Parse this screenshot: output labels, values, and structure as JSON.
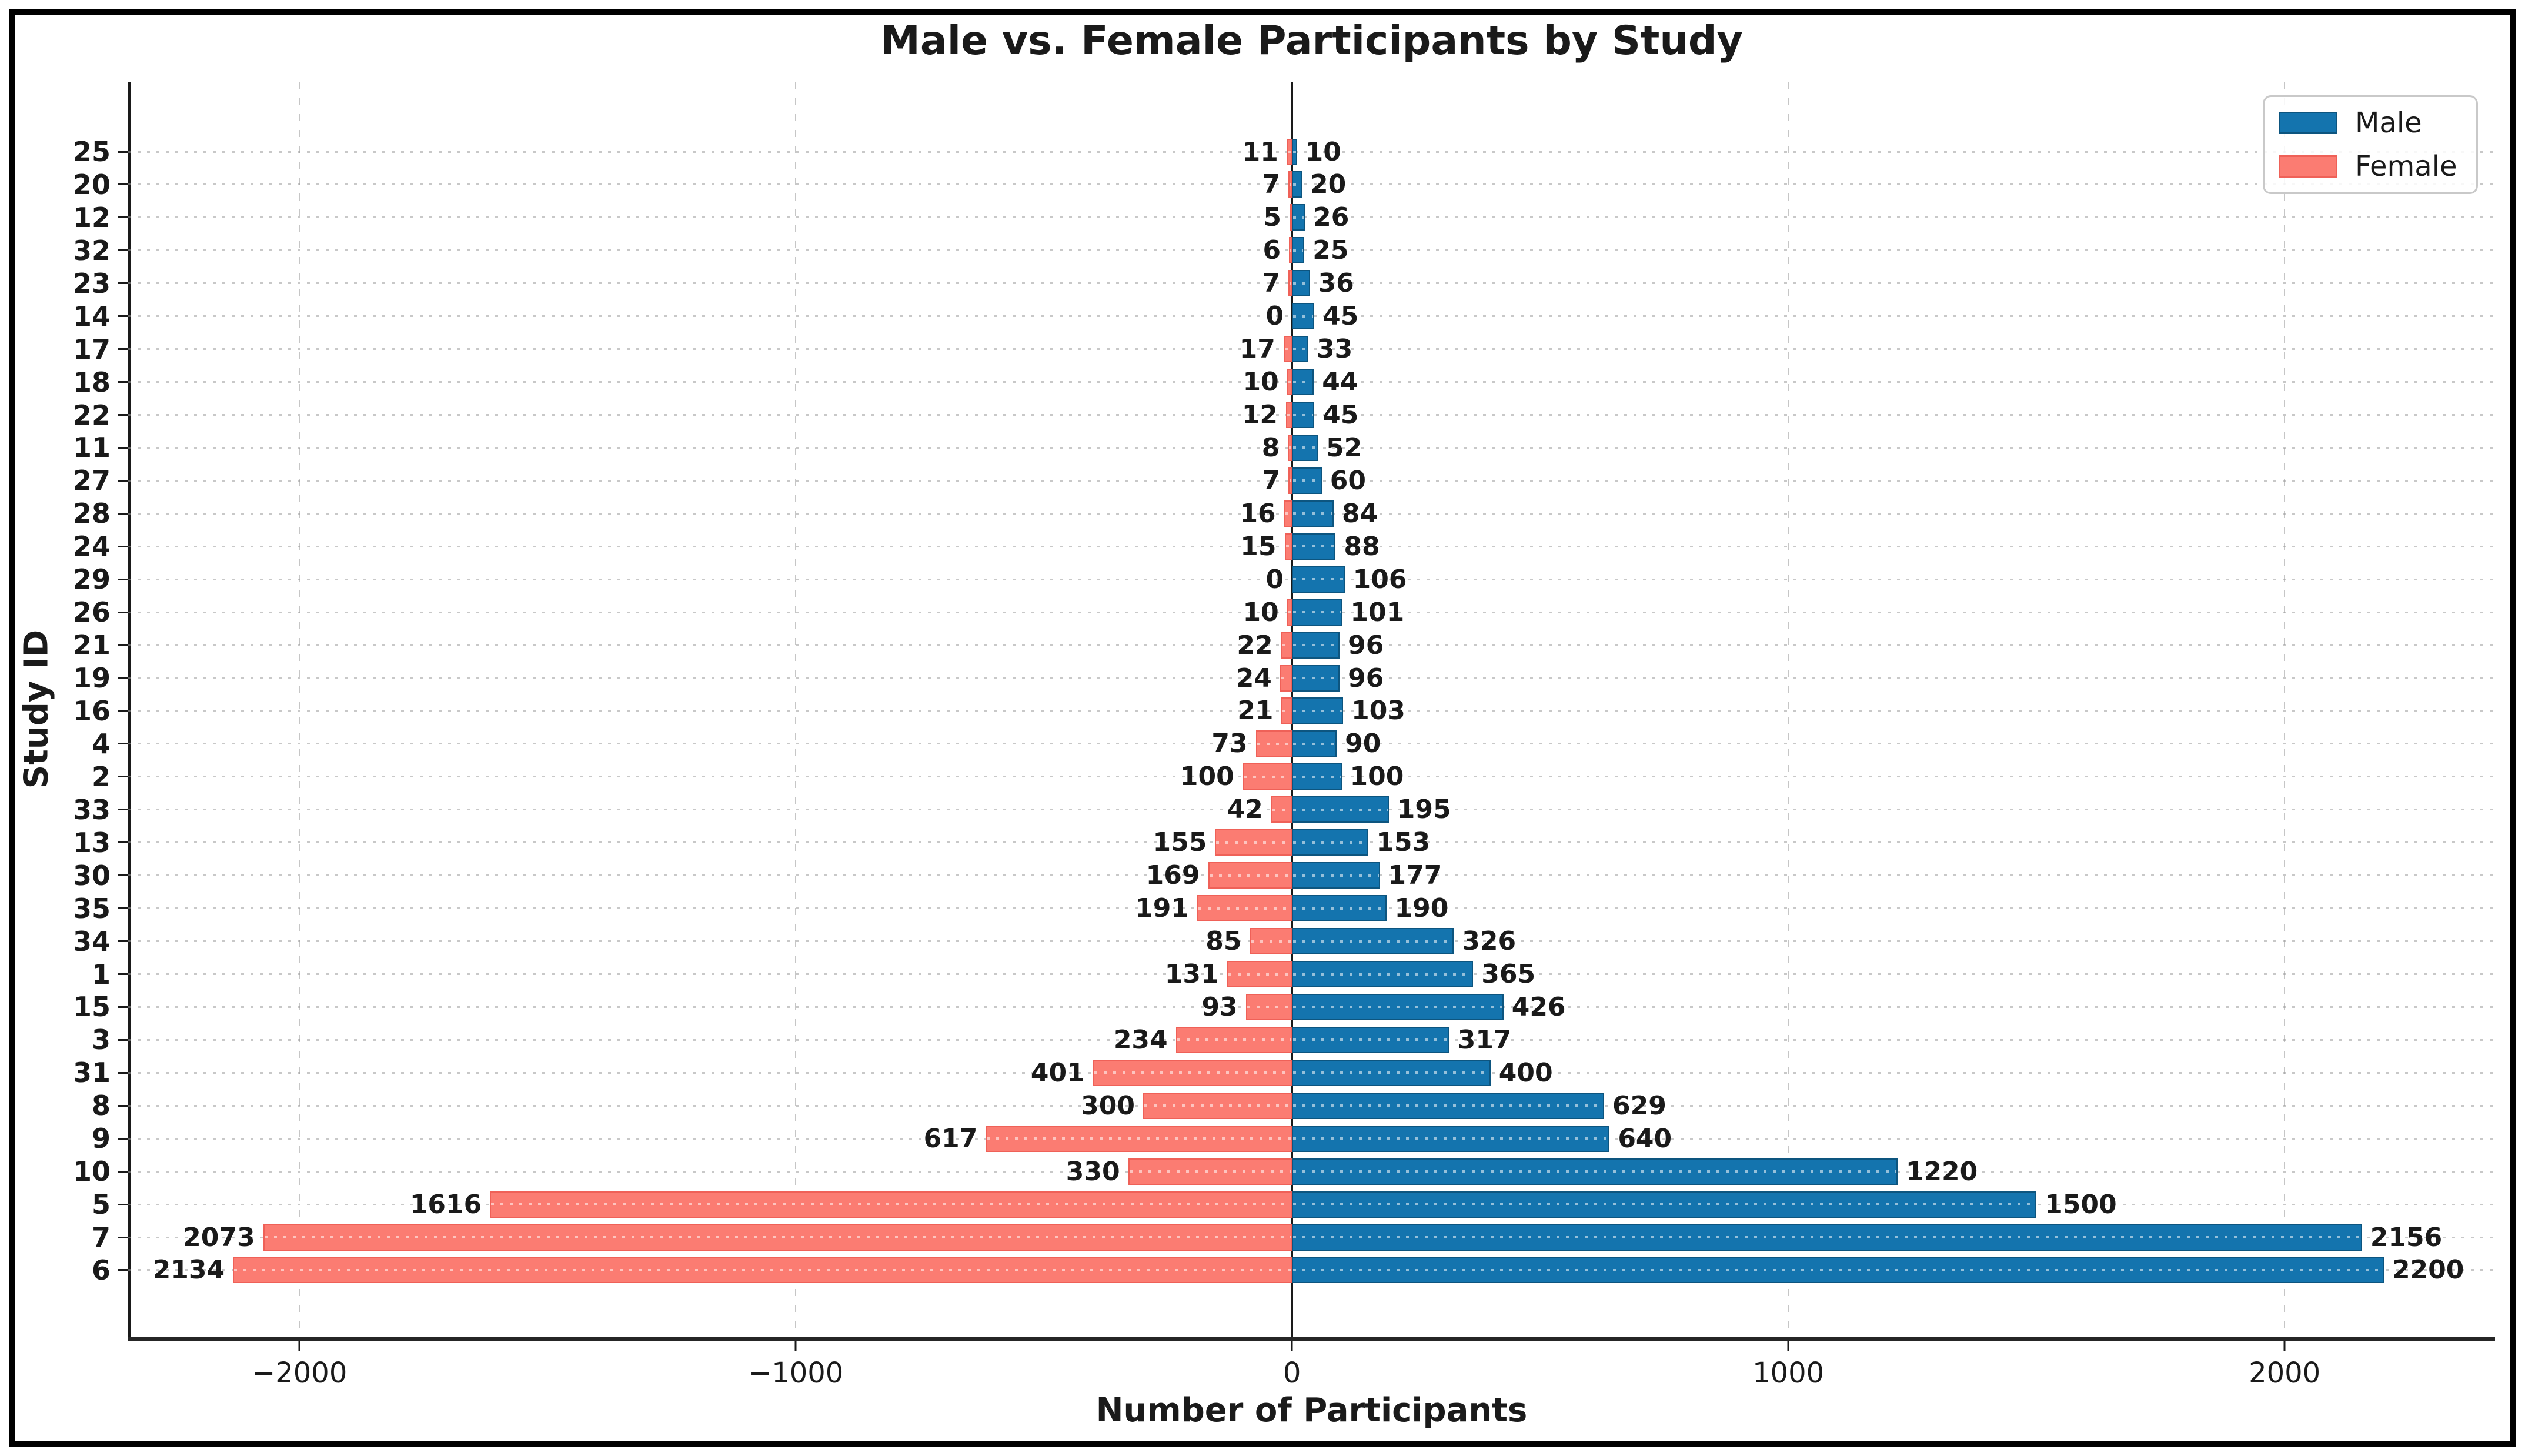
{
  "figure": {
    "title": "Male vs. Female Participants by Study",
    "xlabel": "Number of Participants",
    "ylabel": "Study ID"
  },
  "colors": {
    "male_fill": "#1474ae",
    "male_edge": "#0d557f",
    "female_fill": "#fb7c72",
    "female_edge": "#ef6158",
    "zero_line": "#1a1a1a",
    "grid": "#9b9b9b"
  },
  "chart_data": {
    "type": "bar",
    "orientation": "horizontal_diverging",
    "title": "Male vs. Female Participants by Study",
    "xlabel": "Number of Participants",
    "ylabel": "Study ID",
    "note": "Female values are plotted as negative (left of zero); labels show absolute values. Rows ordered top to bottom.",
    "categories": [
      "25",
      "20",
      "12",
      "32",
      "23",
      "14",
      "17",
      "18",
      "22",
      "11",
      "27",
      "28",
      "24",
      "29",
      "26",
      "21",
      "19",
      "16",
      "4",
      "2",
      "33",
      "13",
      "30",
      "35",
      "34",
      "1",
      "15",
      "3",
      "31",
      "8",
      "9",
      "10",
      "5",
      "7",
      "6"
    ],
    "series": [
      {
        "name": "Male",
        "side": "right",
        "color": "#1474ae",
        "values": [
          10,
          20,
          26,
          25,
          36,
          45,
          33,
          44,
          45,
          52,
          60,
          84,
          88,
          106,
          101,
          96,
          96,
          103,
          90,
          100,
          195,
          153,
          177,
          190,
          326,
          365,
          426,
          317,
          400,
          629,
          640,
          1220,
          1500,
          2156,
          2200
        ]
      },
      {
        "name": "Female",
        "side": "left",
        "color": "#fb7c72",
        "values": [
          11,
          7,
          5,
          6,
          7,
          0,
          17,
          10,
          12,
          8,
          7,
          16,
          15,
          0,
          10,
          22,
          24,
          21,
          73,
          100,
          42,
          155,
          169,
          191,
          85,
          131,
          93,
          234,
          401,
          300,
          617,
          330,
          1616,
          2073,
          2134
        ]
      }
    ],
    "x_ticks": [
      {
        "value": -2000,
        "label": "−2000"
      },
      {
        "value": -1000,
        "label": "−1000"
      },
      {
        "value": 0,
        "label": "0"
      },
      {
        "value": 1000,
        "label": "1000"
      },
      {
        "value": 2000,
        "label": "2000"
      }
    ],
    "xlim": [
      -2345,
      2424
    ],
    "grid": true,
    "bar_labels": true,
    "legend_position": "upper right"
  }
}
